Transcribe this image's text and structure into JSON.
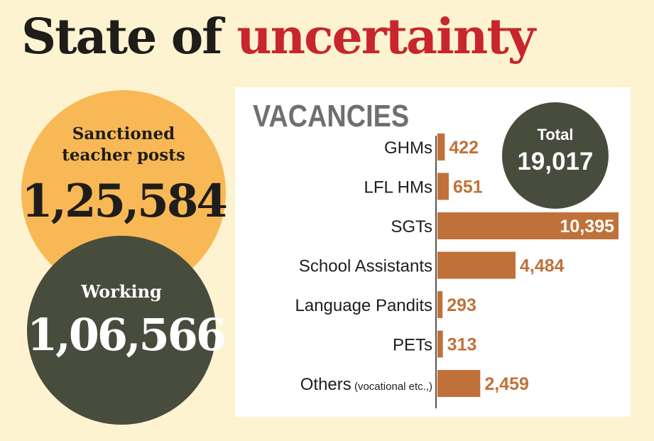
{
  "title": {
    "part1": "State of",
    "part2": "uncertainty"
  },
  "sanctioned": {
    "label_line1": "Sanctioned",
    "label_line2": "teacher posts",
    "value": "1,25,584"
  },
  "working": {
    "label": "Working",
    "value": "1,06,566"
  },
  "total": {
    "label": "Total",
    "value": "19,017"
  },
  "colors": {
    "bar": "#c0713a",
    "accent": "#c8262c",
    "circle_orange": "#f9b856",
    "circle_dark": "#484c3c"
  },
  "chart_data": {
    "type": "bar",
    "orientation": "horizontal",
    "title": "VACANCIES",
    "categories": [
      "GHMs",
      "LFL HMs",
      "SGTs",
      "School Assistants",
      "Language Pandits",
      "PETs",
      "Others"
    ],
    "category_notes": [
      "",
      "",
      "",
      "",
      "",
      "",
      "(vocational etc.,)"
    ],
    "values": [
      422,
      651,
      10395,
      4484,
      293,
      313,
      2459
    ],
    "value_labels": [
      "422",
      "651",
      "10,395",
      "4,484",
      "293",
      "313",
      "2,459"
    ]
  }
}
